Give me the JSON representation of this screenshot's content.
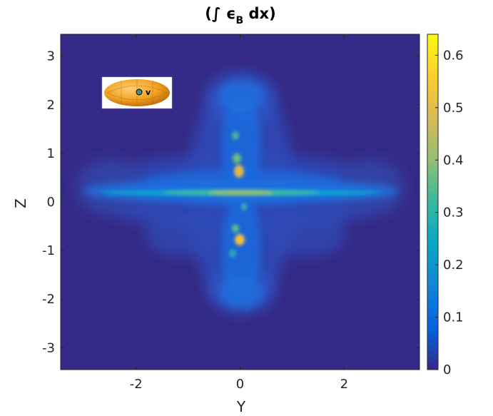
{
  "chart_data": {
    "type": "heatmap",
    "title_prefix": "(∫ ϵ",
    "title_sub": "B",
    "title_suffix": " dx)",
    "xlabel": "Y",
    "ylabel": "Z",
    "xlim": [
      -3.45,
      3.45
    ],
    "ylim": [
      -3.45,
      3.45
    ],
    "xticks": [
      {
        "value": -2,
        "label": "-2"
      },
      {
        "value": 0,
        "label": "0"
      },
      {
        "value": 2,
        "label": "2"
      }
    ],
    "yticks": [
      {
        "value": 3,
        "label": "3"
      },
      {
        "value": 2,
        "label": "2"
      },
      {
        "value": 1,
        "label": "1"
      },
      {
        "value": 0,
        "label": "0"
      },
      {
        "value": -1,
        "label": "-1"
      },
      {
        "value": -2,
        "label": "-2"
      },
      {
        "value": -3,
        "label": "-3"
      }
    ],
    "colorbar": {
      "min": 0,
      "max": 0.64,
      "ticks": [
        {
          "value": 0,
          "label": "0"
        },
        {
          "value": 0.1,
          "label": "0.1"
        },
        {
          "value": 0.2,
          "label": "0.2"
        },
        {
          "value": 0.3,
          "label": "0.3"
        },
        {
          "value": 0.4,
          "label": "0.4"
        },
        {
          "value": 0.5,
          "label": "0.5"
        },
        {
          "value": 0.6,
          "label": "0.6"
        }
      ],
      "colormap": "parula"
    },
    "inset": {
      "label": "v",
      "colors": {
        "body": "#f0a020",
        "dot": "#4a8a8a"
      }
    },
    "colors": {
      "background": "#352a87"
    }
  }
}
